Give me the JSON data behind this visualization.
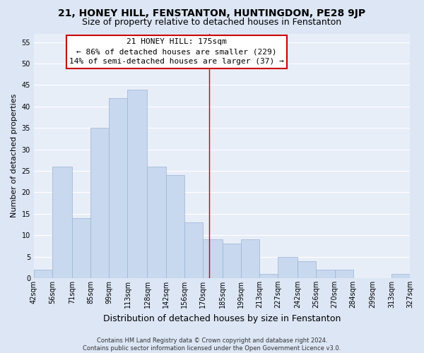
{
  "title": "21, HONEY HILL, FENSTANTON, HUNTINGDON, PE28 9JP",
  "subtitle": "Size of property relative to detached houses in Fenstanton",
  "xlabel": "Distribution of detached houses by size in Fenstanton",
  "ylabel": "Number of detached properties",
  "bin_edges": [
    42,
    56,
    71,
    85,
    99,
    113,
    128,
    142,
    156,
    170,
    185,
    199,
    213,
    227,
    242,
    256,
    270,
    284,
    299,
    313,
    327
  ],
  "bar_heights": [
    2,
    26,
    14,
    35,
    42,
    44,
    26,
    24,
    13,
    9,
    8,
    9,
    1,
    5,
    4,
    2,
    2,
    0,
    0,
    1
  ],
  "bar_color": "#c8d8ee",
  "bar_edge_color": "#9ab4d4",
  "reference_line_x": 175,
  "ylim": [
    0,
    57
  ],
  "yticks": [
    0,
    5,
    10,
    15,
    20,
    25,
    30,
    35,
    40,
    45,
    50,
    55
  ],
  "annotation_title": "21 HONEY HILL: 175sqm",
  "annotation_line1": "← 86% of detached houses are smaller (229)",
  "annotation_line2": "14% of semi-detached houses are larger (37) →",
  "annotation_box_facecolor": "#ffffff",
  "annotation_box_edgecolor": "#cc0000",
  "footer_line1": "Contains HM Land Registry data © Crown copyright and database right 2024.",
  "footer_line2": "Contains public sector information licensed under the Open Government Licence v3.0.",
  "fig_facecolor": "#dce6f5",
  "ax_facecolor": "#e8eef8",
  "grid_color": "#ffffff",
  "title_fontsize": 10,
  "subtitle_fontsize": 9,
  "xlabel_fontsize": 9,
  "ylabel_fontsize": 8,
  "tick_fontsize": 7,
  "annot_fontsize": 8,
  "footer_fontsize": 6
}
